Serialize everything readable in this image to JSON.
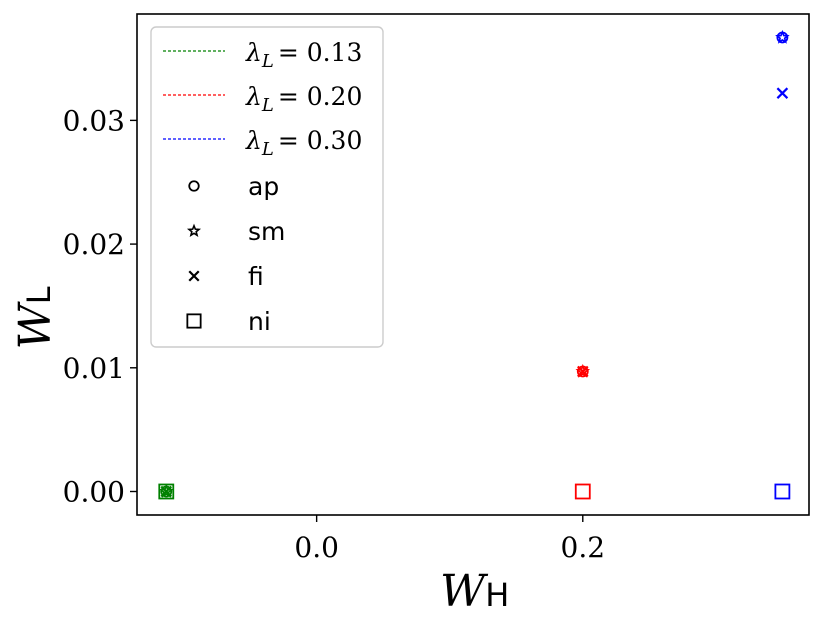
{
  "chart_data": {
    "type": "scatter",
    "xlabel": "W",
    "xlabel_sub": "H",
    "ylabel": "W",
    "ylabel_sub": "L",
    "xlim": [
      -0.135,
      0.37
    ],
    "ylim": [
      -0.0019,
      0.0386
    ],
    "x_ticks": [
      0.0,
      0.2
    ],
    "x_tick_labels": [
      "0.0",
      "0.2"
    ],
    "y_ticks": [
      0.0,
      0.01,
      0.02,
      0.03
    ],
    "y_tick_labels": [
      "0.00",
      "0.01",
      "0.02",
      "0.03"
    ],
    "grid": false,
    "legend_position": "upper-left",
    "legend": {
      "lines": [
        {
          "label": "λ",
          "sub": "L",
          "value": "= 0.13",
          "color": "#008000"
        },
        {
          "label": "λ",
          "sub": "L",
          "value": "= 0.20",
          "color": "#ff0000"
        },
        {
          "label": "λ",
          "sub": "L",
          "value": "= 0.30",
          "color": "#0000ff"
        }
      ],
      "markers": [
        {
          "marker": "circle",
          "label": "ap"
        },
        {
          "marker": "star",
          "label": "sm"
        },
        {
          "marker": "x",
          "label": "fi"
        },
        {
          "marker": "square",
          "label": "ni"
        }
      ]
    },
    "series": [
      {
        "lambda": 0.13,
        "color": "#008000",
        "points": [
          {
            "marker": "circle",
            "x": -0.113,
            "y": 0.0
          },
          {
            "marker": "star",
            "x": -0.113,
            "y": 0.0
          },
          {
            "marker": "x",
            "x": -0.113,
            "y": 0.0
          },
          {
            "marker": "square",
            "x": -0.113,
            "y": 0.0
          }
        ]
      },
      {
        "lambda": 0.2,
        "color": "#ff0000",
        "points": [
          {
            "marker": "circle",
            "x": 0.2,
            "y": 0.0097
          },
          {
            "marker": "star",
            "x": 0.2,
            "y": 0.0097
          },
          {
            "marker": "x",
            "x": 0.2,
            "y": 0.0097
          },
          {
            "marker": "square",
            "x": 0.2,
            "y": 0.0
          }
        ]
      },
      {
        "lambda": 0.3,
        "color": "#0000ff",
        "points": [
          {
            "marker": "circle",
            "x": 0.35,
            "y": 0.0367
          },
          {
            "marker": "star",
            "x": 0.35,
            "y": 0.0367
          },
          {
            "marker": "x",
            "x": 0.35,
            "y": 0.0322
          },
          {
            "marker": "square",
            "x": 0.35,
            "y": 0.0
          }
        ]
      }
    ]
  }
}
